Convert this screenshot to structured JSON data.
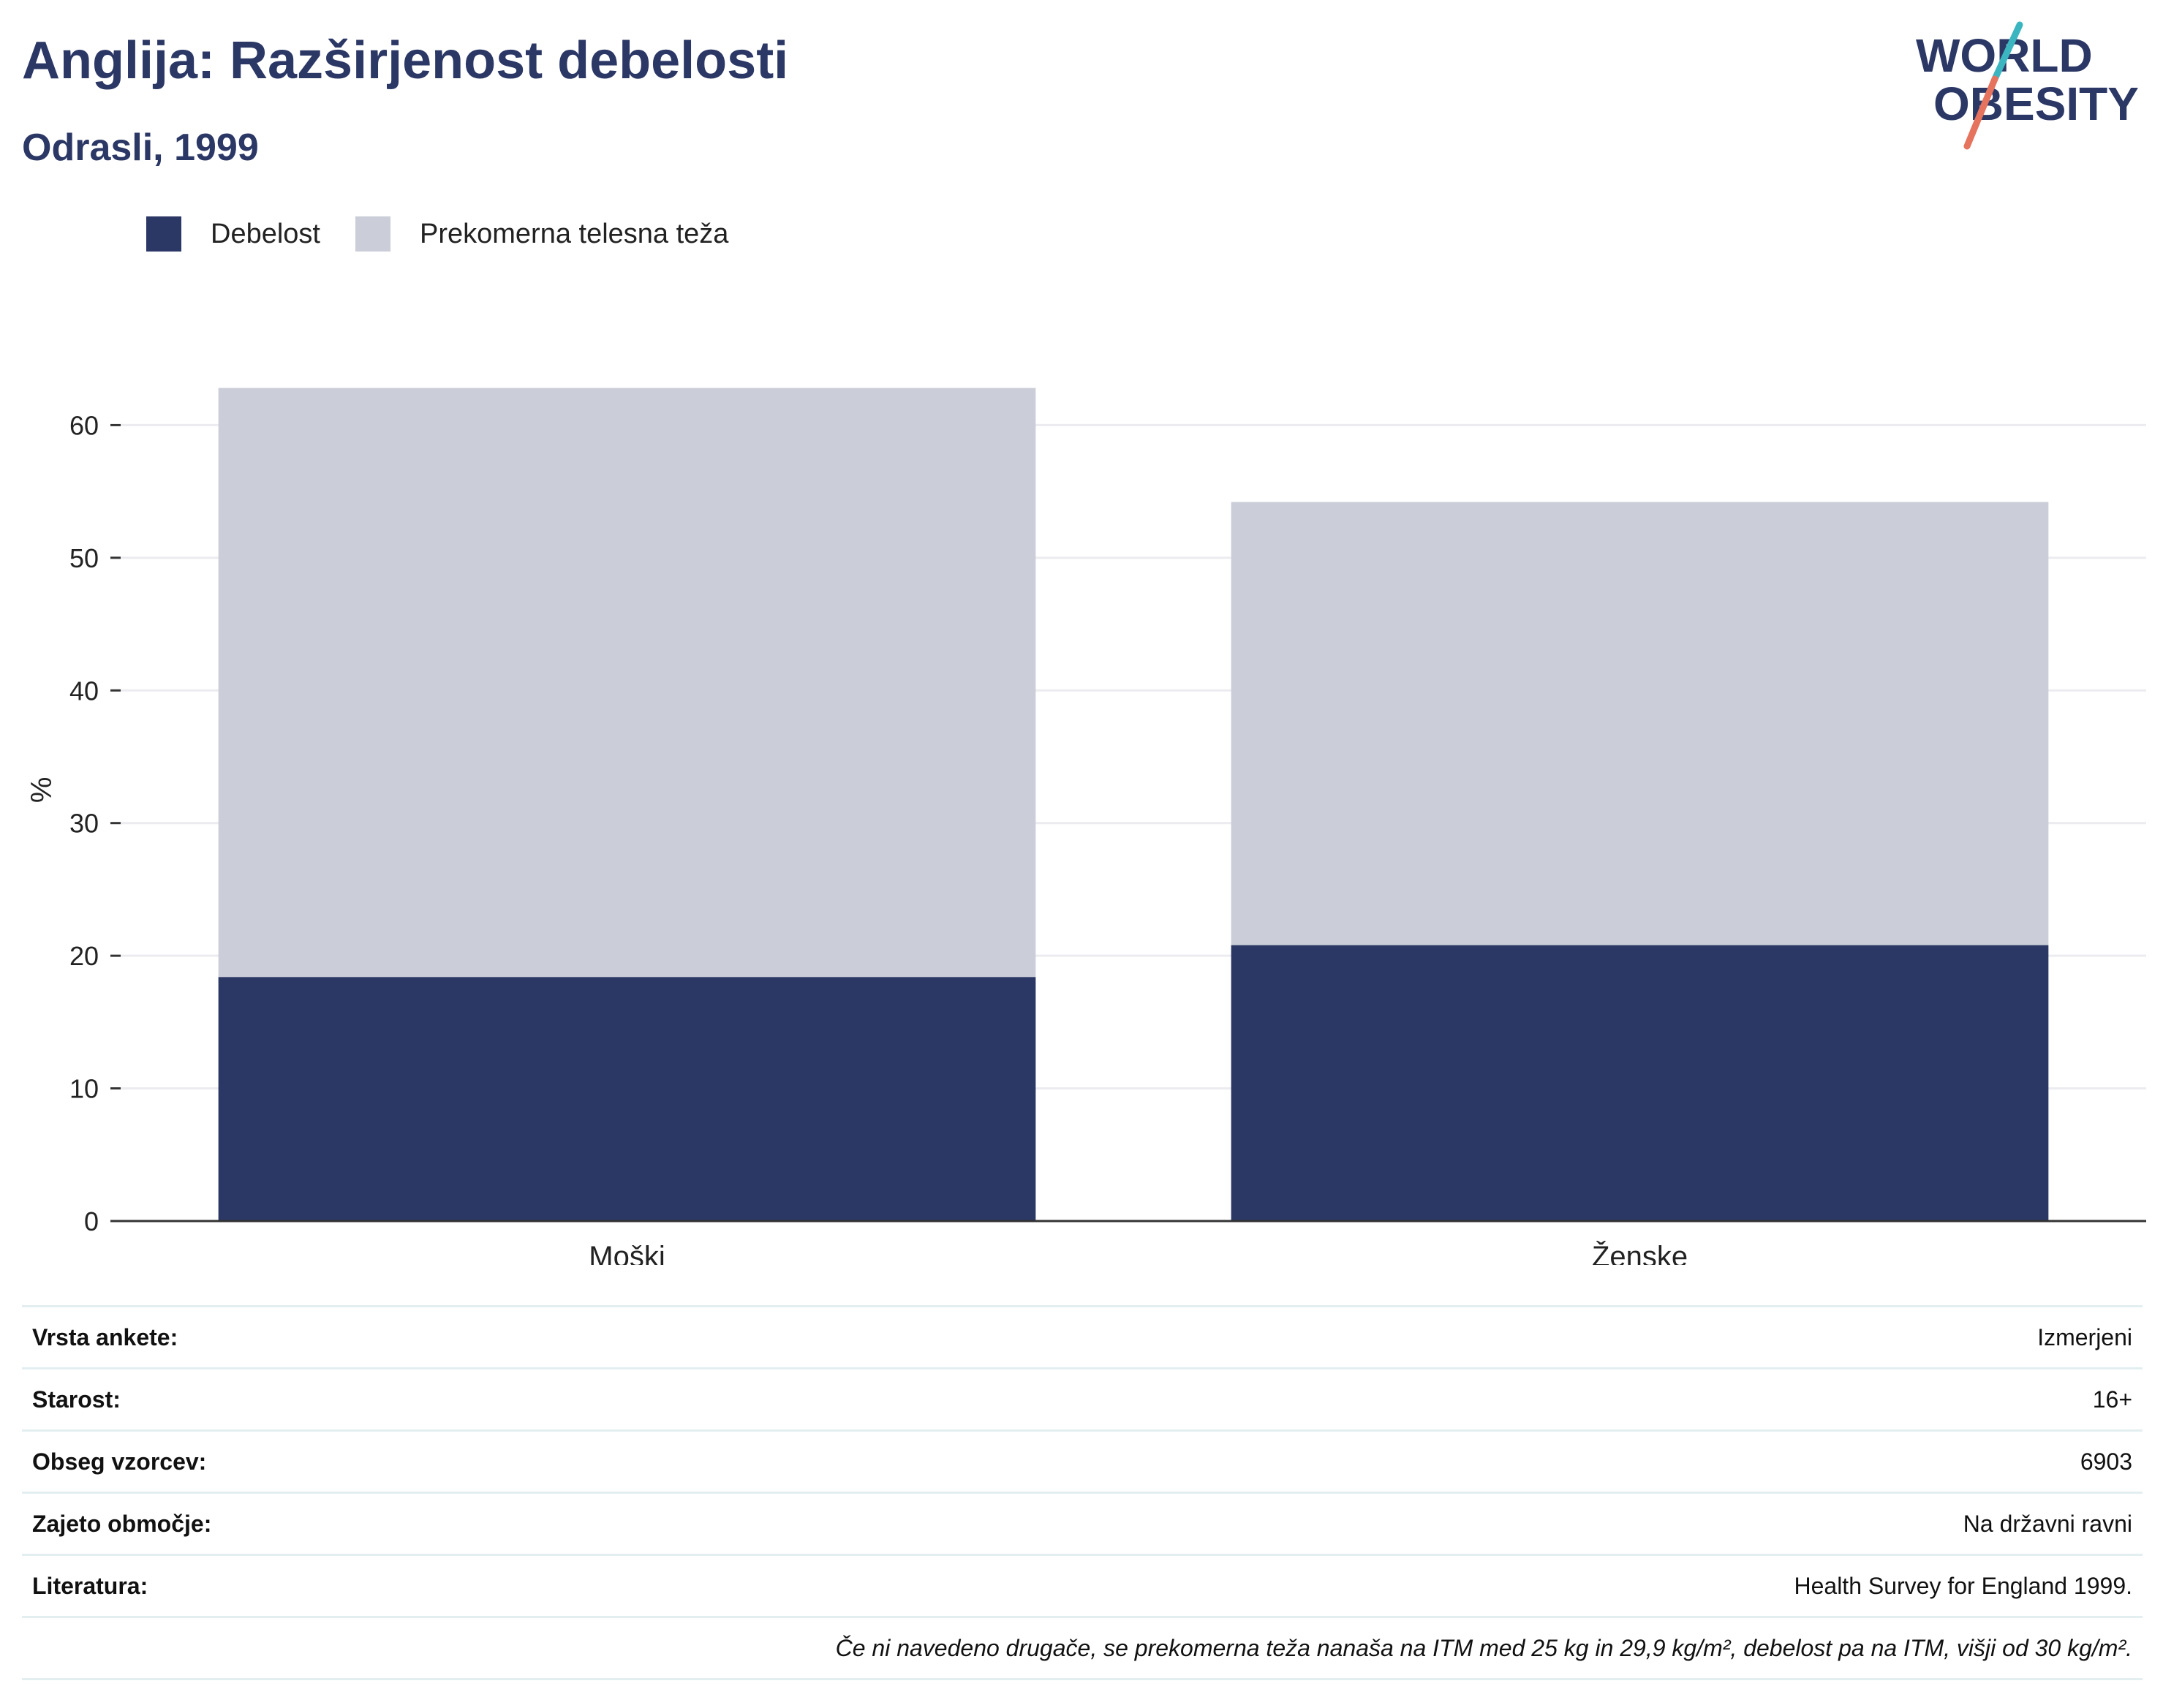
{
  "header": {
    "title": "Anglija: Razširjenost debelosti",
    "subtitle": "Odrasli, 1999"
  },
  "logo": {
    "line1": "WORLD",
    "line2": "OBESITY",
    "colors": {
      "text": "#2b3765",
      "slash_top": "#3bb6c0",
      "slash_bottom": "#e5735e"
    }
  },
  "colors": {
    "obesity": "#2b3765",
    "overweight": "#cbcdd8",
    "grid": "#ececf0",
    "axis": "#333333"
  },
  "chart_data": {
    "type": "bar",
    "stacked": true,
    "categories": [
      "Moški",
      "Ženske"
    ],
    "series": [
      {
        "name": "Debelost",
        "values": [
          18.4,
          20.8
        ],
        "color": "#2b3765"
      },
      {
        "name": "Prekomerna telesna teža",
        "values": [
          44.4,
          33.4
        ],
        "color": "#cbcdd8"
      }
    ],
    "ylabel": "%",
    "xlabel": "",
    "ylim": [
      0,
      70
    ],
    "yticks": [
      0,
      10,
      20,
      30,
      40,
      50,
      60
    ],
    "grid": true,
    "legend_position": "top-left"
  },
  "info": {
    "rows": [
      {
        "label": "Vrsta ankete:",
        "value": "Izmerjeni"
      },
      {
        "label": "Starost:",
        "value": "16+"
      },
      {
        "label": "Obseg vzorcev:",
        "value": "6903"
      },
      {
        "label": "Zajeto območje:",
        "value": "Na državni ravni"
      },
      {
        "label": "Literatura:",
        "value": "Health Survey for England 1999."
      }
    ],
    "note": "Če ni navedeno drugače, se prekomerna teža nanaša na ITM med 25 kg in 29,9 kg/m², debelost pa na ITM, višji od 30 kg/m²."
  }
}
